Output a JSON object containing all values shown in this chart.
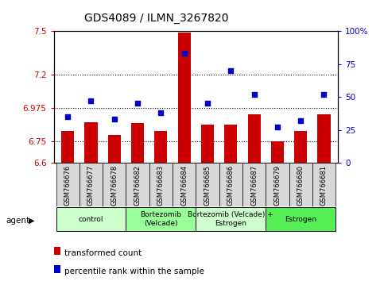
{
  "title": "GDS4089 / ILMN_3267820",
  "samples": [
    "GSM766676",
    "GSM766677",
    "GSM766678",
    "GSM766682",
    "GSM766683",
    "GSM766684",
    "GSM766685",
    "GSM766686",
    "GSM766687",
    "GSM766679",
    "GSM766680",
    "GSM766681"
  ],
  "transformed_counts": [
    6.82,
    6.88,
    6.79,
    6.87,
    6.82,
    7.49,
    6.86,
    6.86,
    6.93,
    6.75,
    6.82,
    6.93
  ],
  "percentile_ranks": [
    35,
    47,
    33,
    45,
    38,
    83,
    45,
    70,
    52,
    27,
    32,
    52
  ],
  "ylim_left": [
    6.6,
    7.5
  ],
  "ylim_right": [
    0,
    100
  ],
  "yticks_left": [
    6.6,
    6.75,
    6.975,
    7.2,
    7.5
  ],
  "yticks_right": [
    0,
    25,
    50,
    75,
    100
  ],
  "ytick_labels_left": [
    "6.6",
    "6.75",
    "6.975",
    "7.2",
    "7.5"
  ],
  "ytick_labels_right": [
    "0",
    "25",
    "50",
    "75",
    "100%"
  ],
  "hlines": [
    6.75,
    6.975,
    7.2
  ],
  "bar_color": "#cc0000",
  "dot_color": "#0000cc",
  "agent_groups": [
    {
      "label": "control",
      "start": 0,
      "end": 3,
      "color": "#ccffcc"
    },
    {
      "label": "Bortezomib\n(Velcade)",
      "start": 3,
      "end": 6,
      "color": "#99ff99"
    },
    {
      "label": "Bortezomib (Velcade) +\nEstrogen",
      "start": 6,
      "end": 9,
      "color": "#ccffcc"
    },
    {
      "label": "Estrogen",
      "start": 9,
      "end": 12,
      "color": "#55ee55"
    }
  ],
  "legend_items": [
    {
      "color": "#cc0000",
      "label": "transformed count"
    },
    {
      "color": "#0000cc",
      "label": "percentile rank within the sample"
    }
  ],
  "agent_label": "agent",
  "bar_width": 0.55,
  "fig_width": 4.83,
  "fig_height": 3.54,
  "dpi": 100
}
